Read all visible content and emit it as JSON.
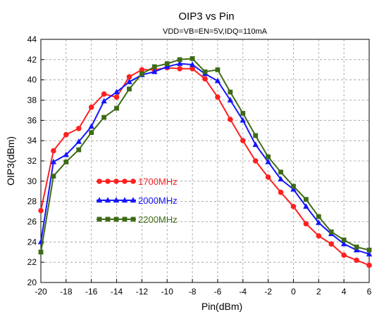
{
  "chart_data": {
    "type": "line",
    "title": "OIP3 vs Pin",
    "subtitle": "VDD=VB=EN=5V,IDQ=110mA",
    "xlabel": "Pin(dBm)",
    "ylabel": "OIP3(dBm)",
    "xlim": [
      -20,
      6
    ],
    "ylim": [
      20,
      44
    ],
    "xticks": [
      -20,
      -18,
      -16,
      -14,
      -12,
      -10,
      -8,
      -6,
      -4,
      -2,
      0,
      2,
      4,
      6
    ],
    "yticks": [
      20,
      22,
      24,
      26,
      28,
      30,
      32,
      34,
      36,
      38,
      40,
      42,
      44
    ],
    "grid": true,
    "legend_position": "center-left",
    "series": [
      {
        "name": "1700MHz",
        "color": "#ff2020",
        "marker": "circle",
        "x": [
          -20,
          -19,
          -18,
          -17,
          -16,
          -15,
          -14,
          -13,
          -12,
          -11,
          -10,
          -9,
          -8,
          -7,
          -6,
          -5,
          -4,
          -3,
          -2,
          -1,
          0,
          1,
          2,
          3,
          4,
          5,
          6
        ],
        "y": [
          27.1,
          33.0,
          34.6,
          35.2,
          37.3,
          38.6,
          38.3,
          40.3,
          41.0,
          41.0,
          41.2,
          41.1,
          41.1,
          40.1,
          38.3,
          36.1,
          34.0,
          32.0,
          30.4,
          28.9,
          27.5,
          25.8,
          24.6,
          23.8,
          22.7,
          22.2,
          21.7
        ]
      },
      {
        "name": "2000MHz",
        "color": "#1414ff",
        "marker": "triangle",
        "x": [
          -20,
          -19,
          -18,
          -17,
          -16,
          -15,
          -14,
          -13,
          -12,
          -11,
          -10,
          -9,
          -8,
          -7,
          -6,
          -5,
          -4,
          -3,
          -2,
          -1,
          0,
          1,
          2,
          3,
          4,
          5,
          6
        ],
        "y": [
          24.0,
          31.9,
          32.6,
          33.9,
          35.4,
          37.9,
          38.8,
          39.8,
          40.5,
          40.8,
          41.3,
          41.6,
          41.5,
          40.6,
          39.9,
          38.0,
          36.0,
          33.6,
          31.9,
          30.2,
          29.2,
          27.5,
          25.9,
          24.8,
          23.8,
          23.2,
          22.8
        ]
      },
      {
        "name": "2200MHz",
        "color": "#3d6b16",
        "marker": "square",
        "x": [
          -20,
          -19,
          -18,
          -17,
          -16,
          -15,
          -14,
          -13,
          -12,
          -11,
          -10,
          -9,
          -8,
          -7,
          -6,
          -5,
          -4,
          -3,
          -2,
          -1,
          0,
          1,
          2,
          3,
          4,
          5,
          6
        ],
        "y": [
          23.0,
          30.5,
          31.9,
          33.1,
          34.8,
          36.3,
          37.2,
          39.1,
          40.6,
          41.3,
          41.6,
          42.0,
          42.1,
          40.8,
          41.0,
          38.8,
          36.7,
          34.5,
          32.4,
          30.9,
          29.5,
          28.2,
          26.5,
          25.0,
          24.2,
          23.5,
          23.2
        ]
      }
    ]
  }
}
